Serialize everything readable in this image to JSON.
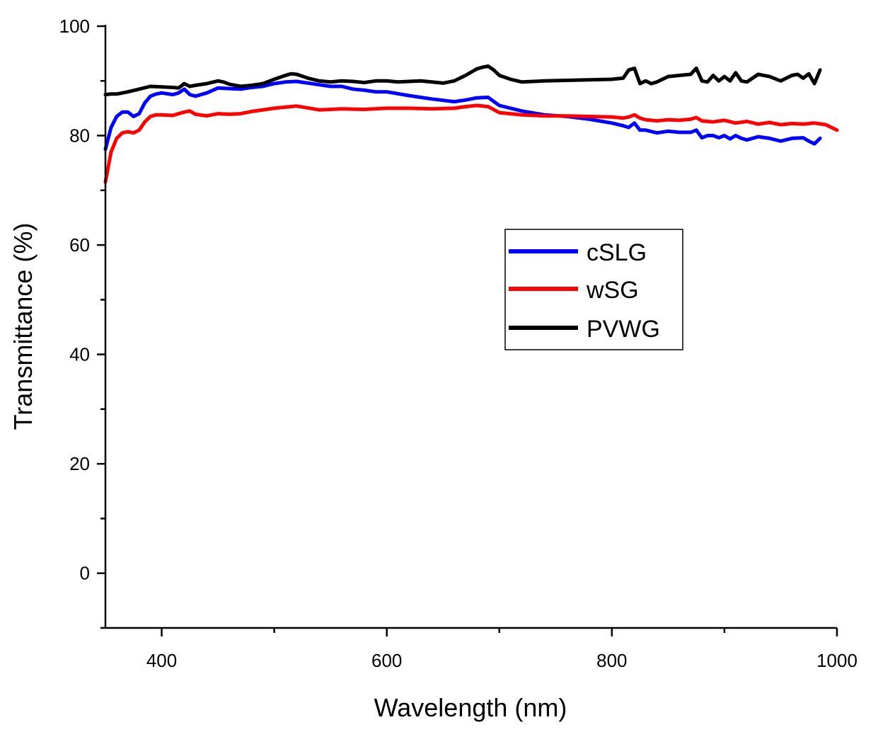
{
  "chart_data": {
    "type": "line",
    "title": "",
    "xlabel": "Wavelength (nm)",
    "ylabel": "Transmittance (%)",
    "xlim": [
      350,
      1000
    ],
    "ylim": [
      -10,
      100
    ],
    "x_ticks": [
      400,
      600,
      800,
      1000
    ],
    "y_ticks": [
      0,
      20,
      40,
      60,
      80,
      100
    ],
    "grid": false,
    "legend_position": "center-right",
    "series": [
      {
        "name": "cSLG",
        "color": "#0000ff",
        "x": [
          350,
          355,
          360,
          365,
          370,
          375,
          380,
          385,
          390,
          395,
          400,
          410,
          415,
          420,
          425,
          430,
          440,
          450,
          460,
          470,
          480,
          490,
          500,
          510,
          520,
          530,
          540,
          550,
          560,
          570,
          580,
          590,
          600,
          620,
          640,
          660,
          670,
          680,
          690,
          700,
          720,
          740,
          760,
          780,
          800,
          810,
          815,
          820,
          825,
          830,
          840,
          850,
          860,
          870,
          875,
          880,
          885,
          890,
          895,
          900,
          905,
          910,
          915,
          920,
          930,
          940,
          950,
          960,
          970,
          975,
          980,
          985
        ],
        "values": [
          77.5,
          81.5,
          83.5,
          84.3,
          84.3,
          83.5,
          84.0,
          86.0,
          87.2,
          87.6,
          87.8,
          87.5,
          87.8,
          88.5,
          87.5,
          87.2,
          87.8,
          88.7,
          88.6,
          88.5,
          88.8,
          89.0,
          89.5,
          89.8,
          89.9,
          89.6,
          89.3,
          89.0,
          89.0,
          88.5,
          88.3,
          88.0,
          88.0,
          87.3,
          86.7,
          86.2,
          86.5,
          86.9,
          87.0,
          85.5,
          84.5,
          83.8,
          83.5,
          83.0,
          82.3,
          81.8,
          81.5,
          82.3,
          81.0,
          81.0,
          80.5,
          80.8,
          80.6,
          80.6,
          81.0,
          79.6,
          80.0,
          80.0,
          79.6,
          80.0,
          79.4,
          80.0,
          79.5,
          79.2,
          79.8,
          79.5,
          79.0,
          79.5,
          79.6,
          79.0,
          78.5,
          79.5
        ]
      },
      {
        "name": "wSG",
        "color": "#ff0000",
        "x": [
          350,
          355,
          360,
          365,
          370,
          375,
          380,
          385,
          390,
          395,
          400,
          410,
          420,
          425,
          430,
          440,
          450,
          460,
          470,
          480,
          500,
          520,
          540,
          560,
          580,
          600,
          620,
          640,
          660,
          670,
          680,
          690,
          700,
          720,
          740,
          760,
          780,
          800,
          810,
          815,
          820,
          825,
          830,
          840,
          850,
          860,
          870,
          875,
          880,
          890,
          900,
          910,
          920,
          930,
          940,
          950,
          960,
          970,
          980,
          990,
          1000
        ],
        "values": [
          71.5,
          77.0,
          79.5,
          80.5,
          80.7,
          80.5,
          81.0,
          82.5,
          83.5,
          83.8,
          83.8,
          83.7,
          84.3,
          84.5,
          83.9,
          83.6,
          84.0,
          83.9,
          84.0,
          84.4,
          85.0,
          85.4,
          84.7,
          84.9,
          84.8,
          85.0,
          85.0,
          84.9,
          85.0,
          85.3,
          85.5,
          85.3,
          84.2,
          83.8,
          83.6,
          83.6,
          83.5,
          83.4,
          83.2,
          83.4,
          83.8,
          83.2,
          82.9,
          82.7,
          82.9,
          82.8,
          83.0,
          83.3,
          82.7,
          82.5,
          82.8,
          82.3,
          82.6,
          82.1,
          82.4,
          82.0,
          82.2,
          82.1,
          82.3,
          82.0,
          81.0
        ]
      },
      {
        "name": "PVWG",
        "color": "#000000",
        "x": [
          350,
          355,
          360,
          365,
          370,
          380,
          390,
          400,
          410,
          415,
          420,
          425,
          430,
          440,
          450,
          455,
          460,
          470,
          480,
          490,
          500,
          510,
          515,
          520,
          530,
          540,
          550,
          560,
          570,
          580,
          590,
          600,
          610,
          620,
          630,
          640,
          650,
          660,
          670,
          680,
          685,
          690,
          695,
          700,
          710,
          720,
          740,
          760,
          780,
          800,
          810,
          815,
          820,
          825,
          830,
          835,
          840,
          850,
          860,
          870,
          875,
          880,
          885,
          890,
          895,
          900,
          905,
          910,
          915,
          920,
          930,
          940,
          950,
          960,
          965,
          970,
          975,
          980,
          985
        ],
        "values": [
          87.5,
          87.6,
          87.6,
          87.8,
          88.0,
          88.5,
          89.0,
          88.9,
          88.8,
          88.7,
          89.5,
          89.0,
          89.2,
          89.5,
          90.0,
          89.8,
          89.4,
          89.0,
          89.2,
          89.5,
          90.3,
          91.0,
          91.3,
          91.2,
          90.5,
          90.0,
          89.8,
          90.0,
          89.9,
          89.7,
          90.0,
          90.0,
          89.8,
          89.9,
          90.0,
          89.8,
          89.6,
          90.0,
          91.0,
          92.2,
          92.5,
          92.7,
          92.0,
          91.0,
          90.3,
          89.8,
          90.0,
          90.1,
          90.2,
          90.3,
          90.5,
          92.0,
          92.3,
          89.5,
          90.0,
          89.5,
          89.8,
          90.8,
          91.0,
          91.2,
          92.3,
          90.0,
          89.8,
          91.0,
          90.0,
          90.8,
          90.0,
          91.5,
          90.0,
          89.8,
          91.2,
          90.8,
          90.0,
          91.0,
          91.2,
          90.5,
          91.3,
          89.5,
          92.0
        ]
      }
    ]
  }
}
